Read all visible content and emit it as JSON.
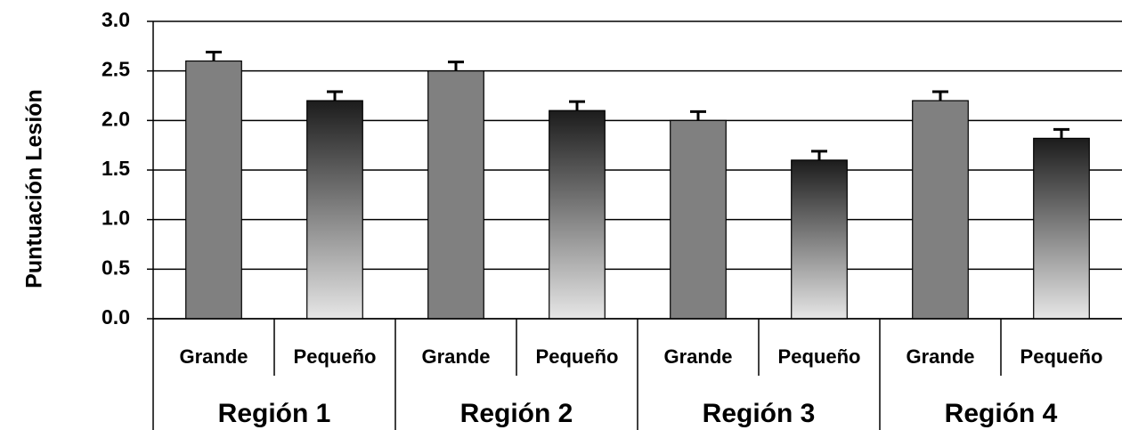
{
  "chart_data": {
    "type": "bar",
    "y_label": "Puntuación Lesión",
    "categories": [
      "Grande",
      "Pequeño",
      "Grande",
      "Pequeño",
      "Grande",
      "Pequeño",
      "Grande",
      "Pequeño"
    ],
    "groups": [
      "Región 1",
      "Región 2",
      "Región 3",
      "Región 4"
    ],
    "values": [
      2.6,
      2.2,
      2.5,
      2.1,
      2.0,
      1.6,
      2.2,
      1.82
    ],
    "errors": [
      0.09,
      0.09,
      0.09,
      0.09,
      0.09,
      0.09,
      0.09,
      0.09
    ],
    "color": "#808080",
    "gradient": [
      "#1c1c1c",
      "#e6e6e6"
    ],
    "ylim": [
      0,
      3
    ],
    "yticks": [
      {
        "value": 0,
        "label": "0.0"
      },
      {
        "value": 0.5,
        "label": "0.5"
      },
      {
        "value": 1,
        "label": "1.0"
      },
      {
        "value": 1.5,
        "label": "1.5"
      },
      {
        "value": 2,
        "label": "2.0"
      },
      {
        "value": 2.5,
        "label": "2.5"
      },
      {
        "value": 3,
        "label": "3.0"
      }
    ],
    "grid": true
  }
}
